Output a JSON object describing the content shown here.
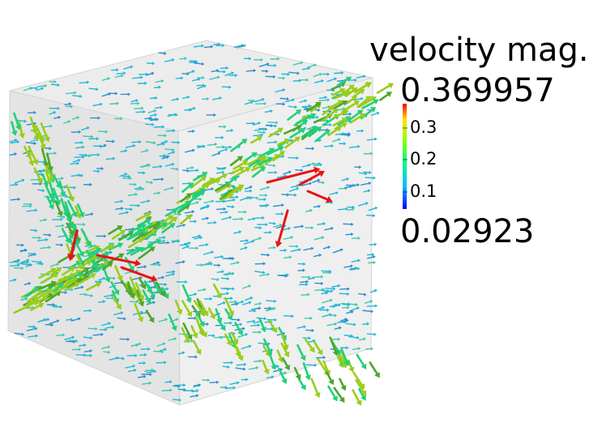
{
  "scene": {
    "description_type": "3D vector glyph field inside translucent cube",
    "colors": {
      "cube_face": "#e6e6e6",
      "cube_edge": "#cfcfcf",
      "low": "#1a3cff",
      "mid_low": "#20b8d8",
      "mid": "#22d07a",
      "mid_high": "#9acd1a",
      "high": "#ffd21a",
      "max": "#e81414"
    }
  },
  "legend": {
    "title": "velocity mag.",
    "max_label": "0.369957",
    "min_label": "0.02923",
    "range": [
      0.02923,
      0.369957
    ],
    "ticks": [
      {
        "label": "0.3",
        "value": 0.3
      },
      {
        "label": "0.2",
        "value": 0.2
      },
      {
        "label": "0.1",
        "value": 0.1
      }
    ],
    "colormap": [
      "#0000ff",
      "#00c0ff",
      "#00ff80",
      "#a0ff00",
      "#ffe000",
      "#ff0000"
    ]
  }
}
